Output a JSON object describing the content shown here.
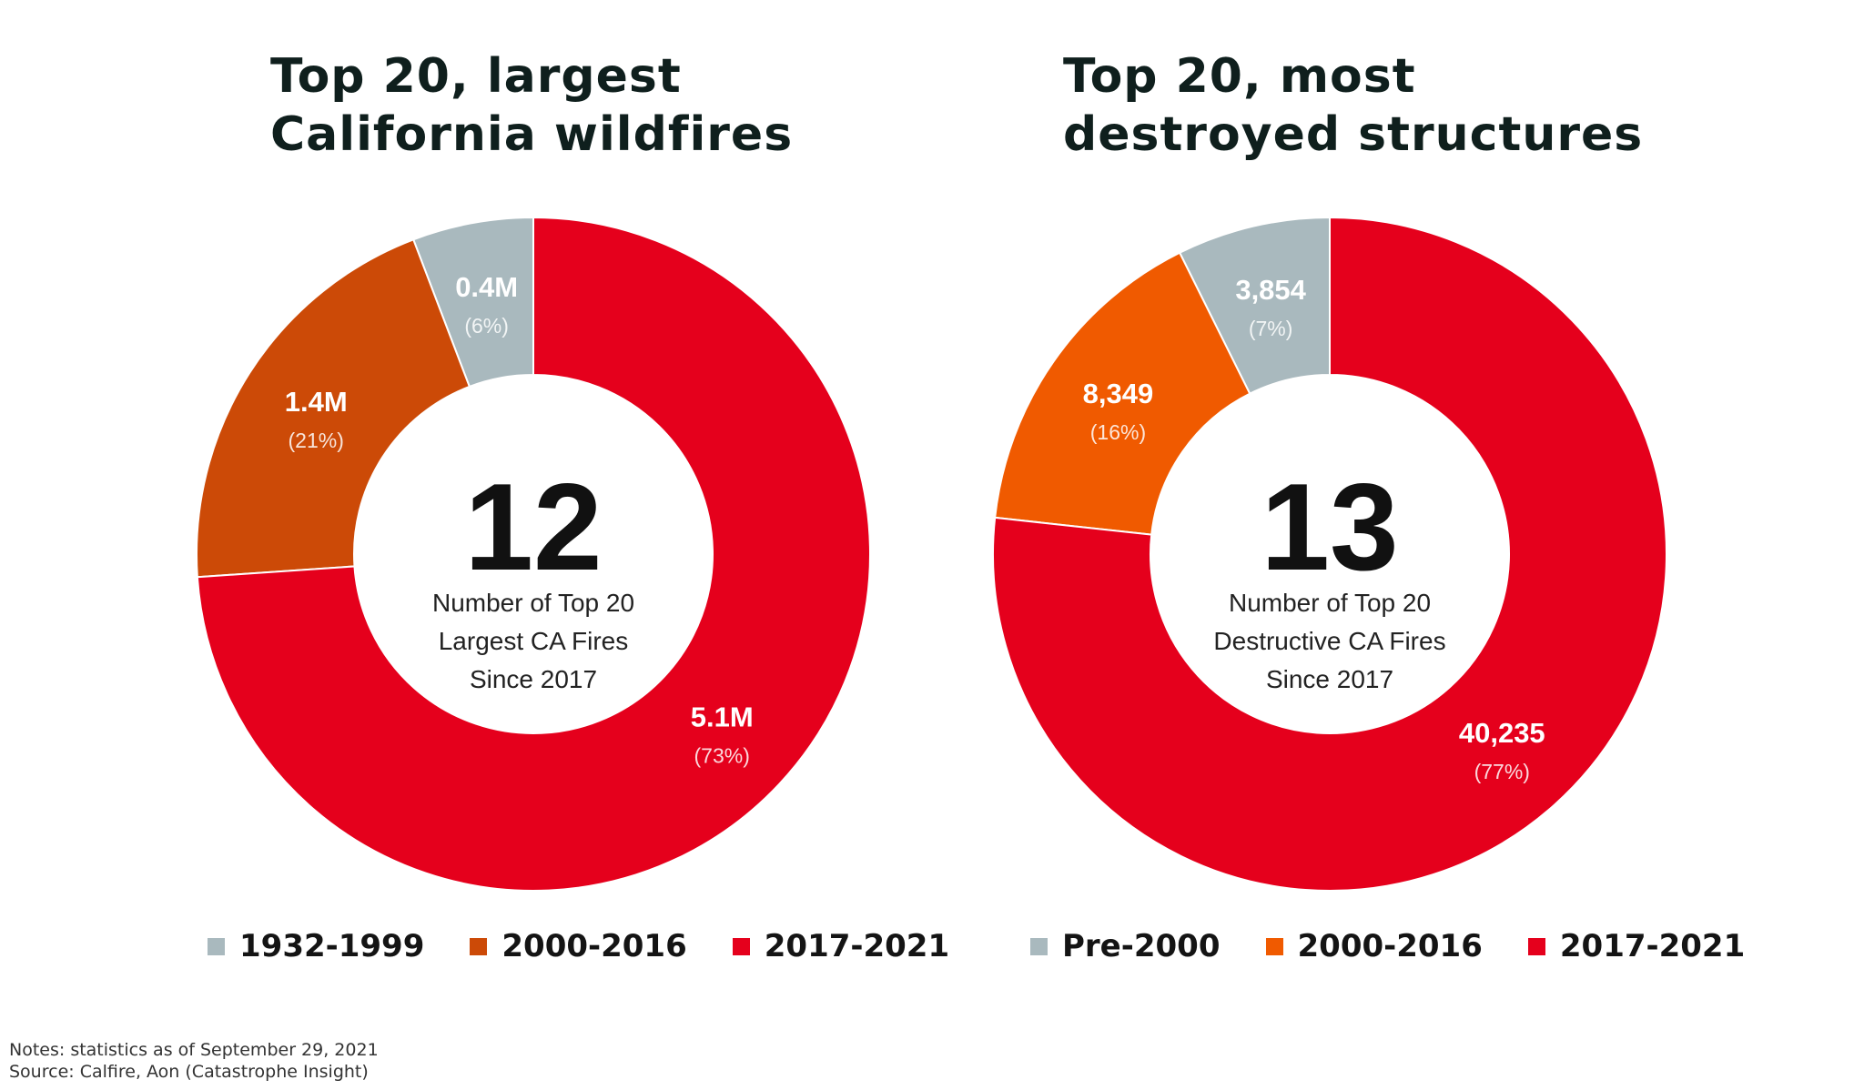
{
  "chart_data": [
    {
      "type": "pie",
      "variant": "donut",
      "title": "Top 20, largest California wildfires",
      "title_lines": [
        "Top 20, largest",
        "California wildfires"
      ],
      "categories": [
        "1932-1999",
        "2000-2016",
        "2017-2021"
      ],
      "values": [
        0.4,
        1.4,
        5.1
      ],
      "percent": [
        6,
        21,
        73
      ],
      "value_labels": [
        "0.4M",
        "1.4M",
        "5.1M"
      ],
      "percent_labels": [
        "(6%)",
        "(21%)",
        "(73%)"
      ],
      "colors": [
        "#a9b9be",
        "#cc4a07",
        "#e5001c"
      ],
      "center_number": "12",
      "center_caption": [
        "Number of Top 20",
        "Largest CA Fires",
        "Since 2017"
      ],
      "legend": [
        "1932-1999",
        "2000-2016",
        "2017-2021"
      ]
    },
    {
      "type": "pie",
      "variant": "donut",
      "title": "Top 20, most destroyed structures",
      "title_lines": [
        "Top 20, most",
        "destroyed structures"
      ],
      "categories": [
        "Pre-2000",
        "2000-2016",
        "2017-2021"
      ],
      "values": [
        3854,
        8349,
        40235
      ],
      "percent": [
        7,
        16,
        77
      ],
      "value_labels": [
        "3,854",
        "8,349",
        "40,235"
      ],
      "percent_labels": [
        "(7%)",
        "(16%)",
        "(77%)"
      ],
      "colors": [
        "#a9b9be",
        "#f05a00",
        "#e5001c"
      ],
      "center_number": "13",
      "center_caption": [
        "Number of Top 20",
        "Destructive CA Fires",
        "Since 2017"
      ],
      "legend": [
        "Pre-2000",
        "2000-2016",
        "2017-2021"
      ]
    }
  ],
  "footnotes": {
    "notes": "Notes: statistics as of September 29, 2021",
    "source": "Source: Calfire, Aon (Catastrophe Insight)"
  }
}
